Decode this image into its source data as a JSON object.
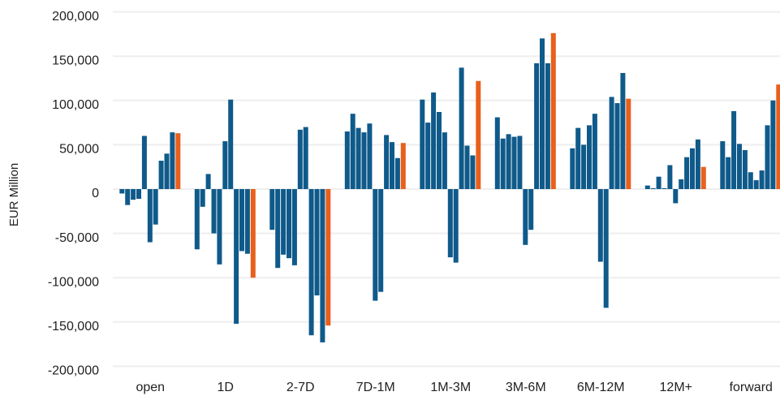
{
  "chart_data": {
    "type": "bar",
    "y_label": "EUR Million",
    "categories": [
      "open",
      "1D",
      "2-7D",
      "7D-1M",
      "1M-3M",
      "3M-6M",
      "6M-12M",
      "12M+",
      "forward"
    ],
    "series": [
      {
        "color": "#0f5a8a",
        "values": [
          -5000,
          -68000,
          -46000,
          65000,
          101000,
          81000,
          46000,
          4000,
          54000
        ]
      },
      {
        "color": "#0f5a8a",
        "values": [
          -18000,
          -20000,
          -89000,
          85000,
          75000,
          57000,
          69000,
          1000,
          36000
        ]
      },
      {
        "color": "#0f5a8a",
        "values": [
          -12000,
          17000,
          -74000,
          69000,
          109000,
          62000,
          50000,
          14000,
          88000
        ]
      },
      {
        "color": "#0f5a8a",
        "values": [
          -11000,
          -50000,
          -78000,
          64000,
          87000,
          59000,
          72000,
          1000,
          51000
        ]
      },
      {
        "color": "#0f5a8a",
        "values": [
          60000,
          -85000,
          -86000,
          74000,
          64000,
          60000,
          85000,
          27000,
          44000
        ]
      },
      {
        "color": "#0f5a8a",
        "values": [
          -60000,
          54000,
          67000,
          -126000,
          -77000,
          -63000,
          -82000,
          -16000,
          19000
        ]
      },
      {
        "color": "#0f5a8a",
        "values": [
          -40000,
          101000,
          70000,
          -116000,
          -83000,
          -46000,
          -134000,
          11000,
          10000
        ]
      },
      {
        "color": "#0f5a8a",
        "values": [
          32000,
          -152000,
          -165000,
          61000,
          137000,
          142000,
          104000,
          36000,
          21000
        ]
      },
      {
        "color": "#0f5a8a",
        "values": [
          40000,
          -70000,
          -120000,
          53000,
          49000,
          170000,
          97000,
          46000,
          72000
        ]
      },
      {
        "color": "#0f5a8a",
        "values": [
          64000,
          -73000,
          -173000,
          35000,
          38000,
          142000,
          131000,
          56000,
          100000
        ]
      },
      {
        "color": "#e8601c",
        "values": [
          63000,
          -100000,
          -154000,
          52000,
          122000,
          176000,
          102000,
          25000,
          118000
        ]
      }
    ],
    "ylim": [
      -200000,
      200000
    ],
    "yticks": [
      {
        "value": -200000,
        "label": "-200,000"
      },
      {
        "value": -150000,
        "label": "-150,000"
      },
      {
        "value": -100000,
        "label": "-100,000"
      },
      {
        "value": -50000,
        "label": "-50,000"
      },
      0,
      {
        "value": 50000,
        "label": "50,000"
      },
      {
        "value": 100000,
        "label": "100,000"
      },
      {
        "value": 150000,
        "label": "150,000"
      },
      {
        "value": 200000,
        "label": "200,000"
      }
    ],
    "grid": true
  }
}
